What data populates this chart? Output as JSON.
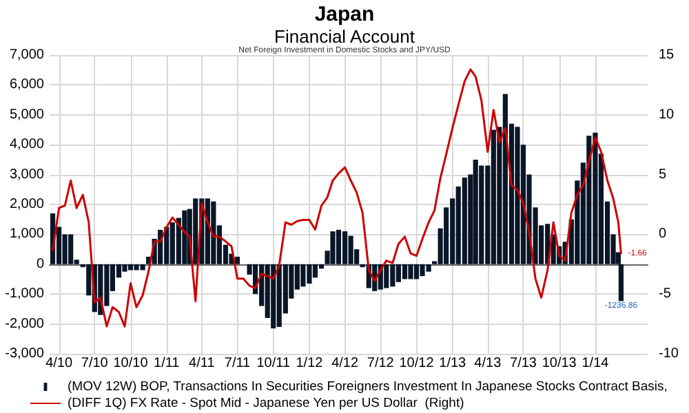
{
  "chart_data": {
    "type": "bar",
    "title": "Japan",
    "subtitle": "Financial Account",
    "annotations": [
      "Net Foreign Investment in Domestic Stocks and JPY/USD"
    ],
    "x": [
      "2010-03-16",
      "2010-04-01",
      "2010-04-16",
      "2010-05-01",
      "2010-05-16",
      "2010-06-01",
      "2010-06-16",
      "2010-07-01",
      "2010-07-16",
      "2010-08-01",
      "2010-08-16",
      "2010-09-01",
      "2010-09-16",
      "2010-10-01",
      "2010-10-16",
      "2010-11-01",
      "2010-11-16",
      "2010-12-01",
      "2010-12-16",
      "2011-01-01",
      "2011-01-16",
      "2011-02-01",
      "2011-02-16",
      "2011-03-01",
      "2011-03-16",
      "2011-04-01",
      "2011-04-16",
      "2011-05-01",
      "2011-05-16",
      "2011-06-01",
      "2011-06-16",
      "2011-07-01",
      "2011-07-16",
      "2011-08-01",
      "2011-08-16",
      "2011-09-01",
      "2011-09-16",
      "2011-10-01",
      "2011-10-16",
      "2011-11-01",
      "2011-11-16",
      "2011-12-01",
      "2011-12-16",
      "2012-01-01",
      "2012-01-16",
      "2012-02-01",
      "2012-02-16",
      "2012-03-01",
      "2012-03-16",
      "2012-04-01",
      "2012-04-16",
      "2012-05-01",
      "2012-05-16",
      "2012-06-01",
      "2012-06-16",
      "2012-07-01",
      "2012-07-16",
      "2012-08-01",
      "2012-08-16",
      "2012-09-01",
      "2012-09-16",
      "2012-10-01",
      "2012-10-16",
      "2012-11-01",
      "2012-11-16",
      "2012-12-01",
      "2012-12-16",
      "2013-01-01",
      "2013-01-16",
      "2013-02-01",
      "2013-02-16",
      "2013-03-01",
      "2013-03-16",
      "2013-04-01",
      "2013-04-16",
      "2013-05-01",
      "2013-05-16",
      "2013-06-01",
      "2013-06-16",
      "2013-07-01",
      "2013-07-16",
      "2013-08-01",
      "2013-08-16",
      "2013-09-01",
      "2013-09-16",
      "2013-10-01",
      "2013-10-16",
      "2013-11-01",
      "2013-11-16",
      "2013-12-01",
      "2013-12-16",
      "2014-01-01",
      "2014-01-16",
      "2014-02-01",
      "2014-02-16",
      "2014-03-01",
      "2014-03-08"
    ],
    "series": [
      {
        "name": "(MOV 12W) BOP, Transactions In Securities Foreigners Investment In Japanese Stocks Contract Basis,",
        "color": "#0a1628",
        "values": [
          1700,
          1250,
          1000,
          1000,
          150,
          -100,
          -1050,
          -1600,
          -1700,
          -1400,
          -900,
          -450,
          -250,
          -200,
          -200,
          -200,
          250,
          850,
          1150,
          1250,
          1400,
          1550,
          1800,
          1850,
          2200,
          2200,
          2200,
          2100,
          1300,
          650,
          350,
          250,
          0,
          -350,
          -1000,
          -1400,
          -1800,
          -2150,
          -2100,
          -1650,
          -1150,
          -850,
          -750,
          -650,
          -450,
          -150,
          450,
          1100,
          1150,
          1100,
          950,
          500,
          -100,
          -800,
          -900,
          -850,
          -800,
          -750,
          -600,
          -500,
          -500,
          -500,
          -400,
          -250,
          100,
          1200,
          1900,
          2200,
          2600,
          2900,
          3000,
          3500,
          3300,
          3300,
          4500,
          4600,
          5700,
          4700,
          4600,
          4000,
          3000,
          1900,
          1300,
          1350,
          1000,
          600,
          750,
          1500,
          2800,
          3400,
          4300,
          4400,
          3700,
          2100,
          1000,
          400,
          -1236.86
        ],
        "value_labels": [
          null,
          null,
          null,
          null,
          null,
          null,
          null,
          null,
          null,
          null,
          null,
          null,
          null,
          null,
          null,
          null,
          null,
          null,
          null,
          null,
          null,
          null,
          null,
          null,
          null,
          null,
          null,
          null,
          null,
          null,
          null,
          null,
          null,
          null,
          null,
          null,
          null,
          null,
          null,
          null,
          null,
          null,
          null,
          null,
          null,
          null,
          null,
          null,
          null,
          null,
          null,
          null,
          null,
          null,
          null,
          null,
          null,
          null,
          null,
          null,
          null,
          null,
          null,
          null,
          null,
          null,
          null,
          null,
          null,
          null,
          null,
          null,
          null,
          null,
          null,
          null,
          null,
          null,
          null,
          null,
          null,
          null,
          null,
          null,
          null,
          null,
          null,
          null,
          null,
          null,
          null,
          null,
          null,
          null,
          null,
          null,
          "-1236.86"
        ]
      },
      {
        "name": "(DIFF 1Q) FX Rate - Spot Mid - Japanese Yen per US Dollar  (Right)",
        "type": "line",
        "axis": "y2",
        "color": "#cc0000",
        "values": [
          -1.4,
          2.2,
          2.4,
          4.5,
          2.2,
          3.3,
          1.0,
          -5.7,
          -5.3,
          -7.7,
          -6.1,
          -6.5,
          -7.7,
          -4.1,
          -6.1,
          -5.1,
          -3.1,
          -0.6,
          -0.6,
          0.6,
          1.4,
          0.8,
          0.2,
          -0.2,
          -5.6,
          2.6,
          1.0,
          -0.2,
          -0.2,
          -0.6,
          -1.0,
          -3.7,
          -3.7,
          -4.3,
          -4.5,
          -3.3,
          -3.5,
          -3.7,
          -2.6,
          1.0,
          0.8,
          1.1,
          1.2,
          1.2,
          0.4,
          2.4,
          3.1,
          4.5,
          5.1,
          5.6,
          4.5,
          3.5,
          1.8,
          -3.0,
          -3.9,
          -3.0,
          -2.2,
          -2.4,
          -0.8,
          -0.2,
          -1.6,
          -1.8,
          -0.4,
          1.0,
          2.0,
          4.7,
          6.7,
          8.9,
          10.8,
          12.8,
          13.8,
          13.2,
          11.2,
          6.9,
          10.4,
          7.7,
          8.9,
          4.1,
          3.7,
          2.6,
          0.2,
          -3.7,
          -5.3,
          -3.0,
          1.0,
          -1.8,
          -2.2,
          1.8,
          3.3,
          4.1,
          6.1,
          8.1,
          6.9,
          4.5,
          3.0,
          1.0,
          -1.66
        ],
        "value_labels": [
          null,
          null,
          null,
          null,
          null,
          null,
          null,
          null,
          null,
          null,
          null,
          null,
          null,
          null,
          null,
          null,
          null,
          null,
          null,
          null,
          null,
          null,
          null,
          null,
          null,
          null,
          null,
          null,
          null,
          null,
          null,
          null,
          null,
          null,
          null,
          null,
          null,
          null,
          null,
          null,
          null,
          null,
          null,
          null,
          null,
          null,
          null,
          null,
          null,
          null,
          null,
          null,
          null,
          null,
          null,
          null,
          null,
          null,
          null,
          null,
          null,
          null,
          null,
          null,
          null,
          null,
          null,
          null,
          null,
          null,
          null,
          null,
          null,
          null,
          null,
          null,
          null,
          null,
          null,
          null,
          null,
          null,
          null,
          null,
          null,
          null,
          null,
          null,
          null,
          null,
          null,
          null,
          null,
          null,
          null,
          null,
          "-1.66"
        ]
      }
    ],
    "xlim": [
      "2010-03-08",
      "2014-05-15"
    ],
    "xticks": [
      {
        "value": "2010-04-01",
        "label": "4/10"
      },
      {
        "value": "2010-07-01",
        "label": "7/10"
      },
      {
        "value": "2010-10-01",
        "label": "10/10"
      },
      {
        "value": "2011-01-01",
        "label": "1/11"
      },
      {
        "value": "2011-04-01",
        "label": "4/11"
      },
      {
        "value": "2011-07-01",
        "label": "7/11"
      },
      {
        "value": "2011-10-01",
        "label": "10/11"
      },
      {
        "value": "2012-01-01",
        "label": "1/12"
      },
      {
        "value": "2012-04-01",
        "label": "4/12"
      },
      {
        "value": "2012-07-01",
        "label": "7/12"
      },
      {
        "value": "2012-10-01",
        "label": "10/12"
      },
      {
        "value": "2013-01-01",
        "label": "1/13"
      },
      {
        "value": "2013-04-01",
        "label": "4/13"
      },
      {
        "value": "2013-07-01",
        "label": "7/13"
      },
      {
        "value": "2013-10-01",
        "label": "10/13"
      },
      {
        "value": "2014-01-01",
        "label": "1/14"
      }
    ],
    "ylim": [
      -3000,
      7000
    ],
    "yticks": [
      {
        "value": -3000,
        "label": "-3,000"
      },
      {
        "value": -2000,
        "label": "-2,000"
      },
      {
        "value": -1000,
        "label": "-1,000"
      },
      0,
      {
        "value": 1000,
        "label": "1,000"
      },
      {
        "value": 2000,
        "label": "2,000"
      },
      {
        "value": 3000,
        "label": "3,000"
      },
      {
        "value": 4000,
        "label": "4,000"
      },
      {
        "value": 5000,
        "label": "5,000"
      },
      {
        "value": 6000,
        "label": "6,000"
      },
      {
        "value": 7000,
        "label": "7,000"
      }
    ],
    "y2lim": [
      -10,
      15
    ],
    "y2ticks": [
      -10,
      -5,
      0,
      5,
      10,
      15
    ],
    "grid": true,
    "legend": "bottom",
    "marker": "none"
  }
}
